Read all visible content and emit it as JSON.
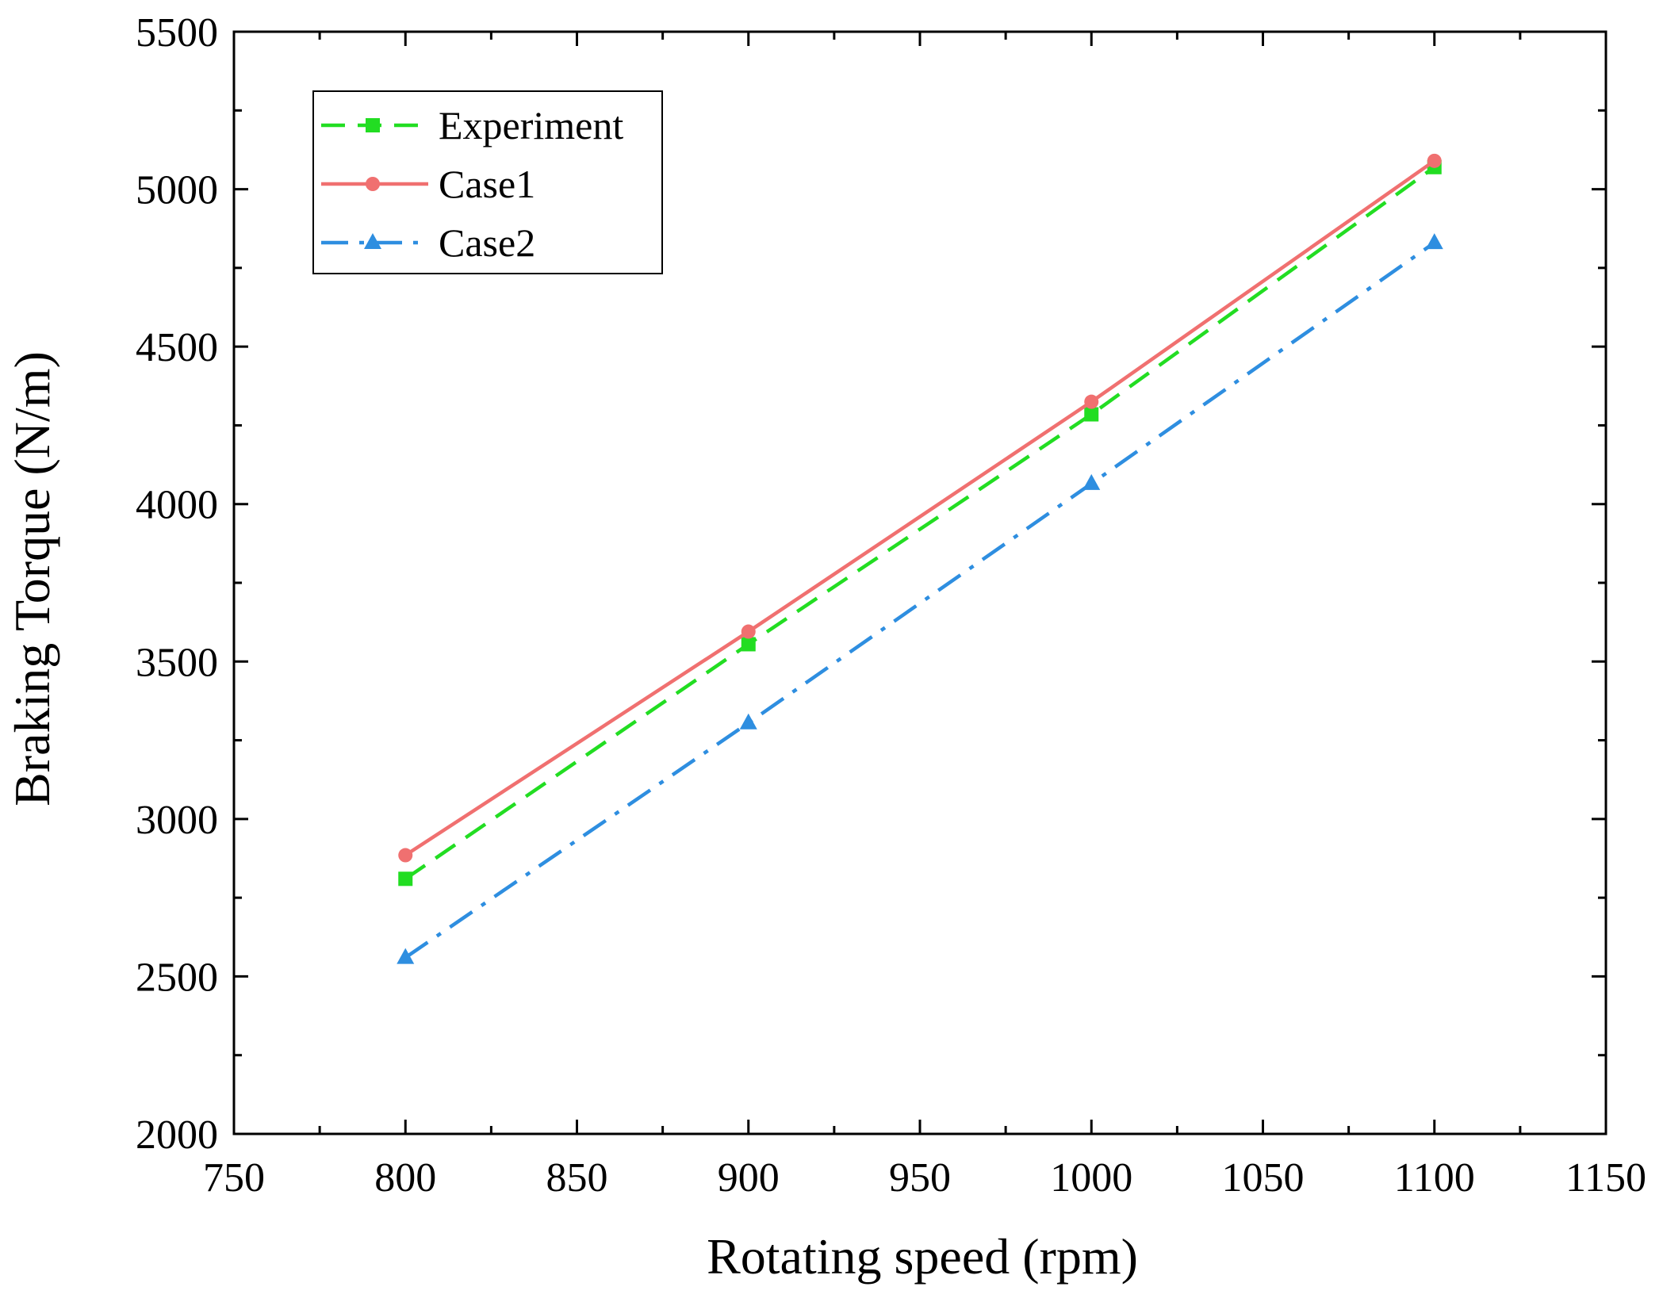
{
  "chart_data": {
    "type": "line",
    "title": "",
    "xlabel": "Rotating speed (rpm)",
    "ylabel": "Braking Torque (N/m)",
    "xlim": [
      750,
      1150
    ],
    "ylim": [
      2000,
      5500
    ],
    "xticks": [
      750,
      800,
      850,
      900,
      950,
      1000,
      1050,
      1100,
      1150
    ],
    "yticks": [
      2000,
      2500,
      3000,
      3500,
      4000,
      4500,
      5000,
      5500
    ],
    "x": [
      800,
      900,
      1000,
      1100
    ],
    "legend_position": "top-left",
    "grid": false,
    "series": [
      {
        "name": "Experiment",
        "values": [
          2810,
          3555,
          4285,
          5070
        ],
        "color": "#22dd22",
        "dash": "dashed",
        "marker": "square"
      },
      {
        "name": "Case1",
        "values": [
          2885,
          3595,
          4325,
          5090
        ],
        "color": "#f07070",
        "dash": "solid",
        "marker": "circle"
      },
      {
        "name": "Case2",
        "values": [
          2560,
          3305,
          4065,
          4830
        ],
        "color": "#2e8ee0",
        "dash": "dashdot",
        "marker": "triangle"
      }
    ]
  }
}
